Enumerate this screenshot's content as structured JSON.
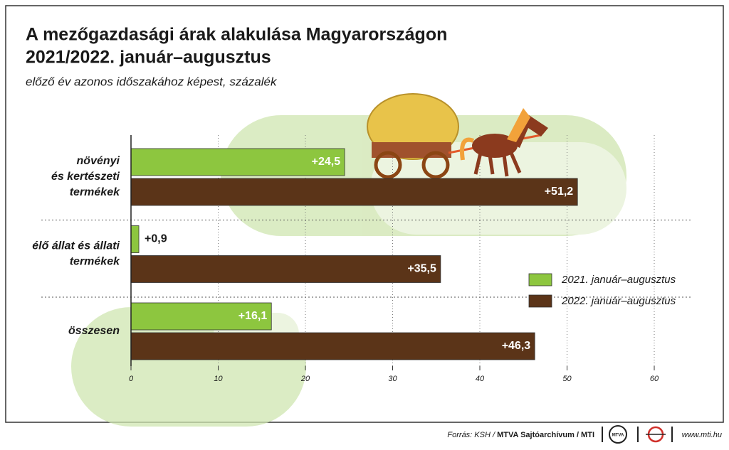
{
  "chart_data": {
    "type": "bar",
    "orientation": "horizontal",
    "title": [
      "A mezőgazdasági árak alakulása Magyarországon",
      "2021/2022. január–augusztus"
    ],
    "subtitle": "előző év azonos időszakához képest, százalék",
    "categories": [
      [
        "növényi",
        "és kertészeti",
        "termékek"
      ],
      [
        "élő állat és állati",
        "termékek"
      ],
      [
        "összesen"
      ]
    ],
    "series": [
      {
        "name": "2021. január–augusztus",
        "color": "#8dc63f",
        "values": [
          24.5,
          0.9,
          16.1
        ],
        "value_labels": [
          "+24,5",
          "+0,9",
          "+16,1"
        ]
      },
      {
        "name": "2022. január–augusztus",
        "color": "#5b3418",
        "values": [
          51.2,
          35.5,
          46.3
        ],
        "value_labels": [
          "+51,2",
          "+35,5",
          "+46,3"
        ]
      }
    ],
    "xlim": [
      0,
      60
    ],
    "xticks": [
      0,
      10,
      20,
      30,
      40,
      50,
      60
    ],
    "grid": true,
    "legend": "lower right"
  },
  "footer": {
    "source": "Forrás: KSH /",
    "source_bold": "MTVA Sajtóarchívum / MTI",
    "logo": "MTVA",
    "url": "www.mti.hu"
  }
}
